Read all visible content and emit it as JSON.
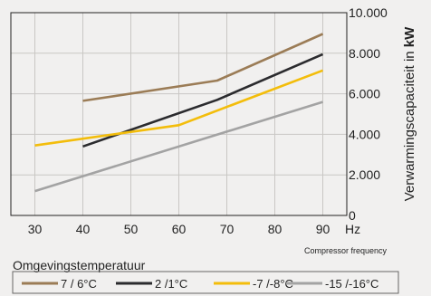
{
  "chart_data": {
    "type": "line",
    "x": [
      30,
      40,
      50,
      60,
      70,
      80,
      90
    ],
    "x_tick_labels": [
      "30",
      "40",
      "50",
      "60",
      "70",
      "80",
      "90"
    ],
    "x_unit": "Hz",
    "xlim": [
      25,
      95
    ],
    "ylim": [
      0,
      10000
    ],
    "y_tick_labels": [
      "0",
      "2.000",
      "4.000",
      "6.000",
      "8.000",
      "10.000"
    ],
    "y_tick_values": [
      0,
      2000,
      4000,
      6000,
      8000,
      10000
    ],
    "ylabel_prefix": "Verwarmingscapaciteit in ",
    "ylabel_unit": "kW",
    "xlabel": "Omgevingstemperatuur",
    "x_secondary_label": "Compressor frequency",
    "grid": true,
    "legend_position": "bottom",
    "series": [
      {
        "name": "7 / 6°C",
        "color": "#9b7c56",
        "points": [
          [
            40,
            5650
          ],
          [
            68,
            6650
          ],
          [
            90,
            8950
          ]
        ]
      },
      {
        "name": "2 /1°C",
        "color": "#2b2b2e",
        "points": [
          [
            40,
            3400
          ],
          [
            68,
            5700
          ],
          [
            90,
            7950
          ]
        ]
      },
      {
        "name": "-7 /-8°C",
        "color": "#f3bd0b",
        "points": [
          [
            30,
            3450
          ],
          [
            60,
            4450
          ],
          [
            90,
            7150
          ]
        ]
      },
      {
        "name": "-15 /-16°C",
        "color": "#a3a3a3",
        "points": [
          [
            30,
            1200
          ],
          [
            90,
            5600
          ]
        ]
      }
    ]
  }
}
